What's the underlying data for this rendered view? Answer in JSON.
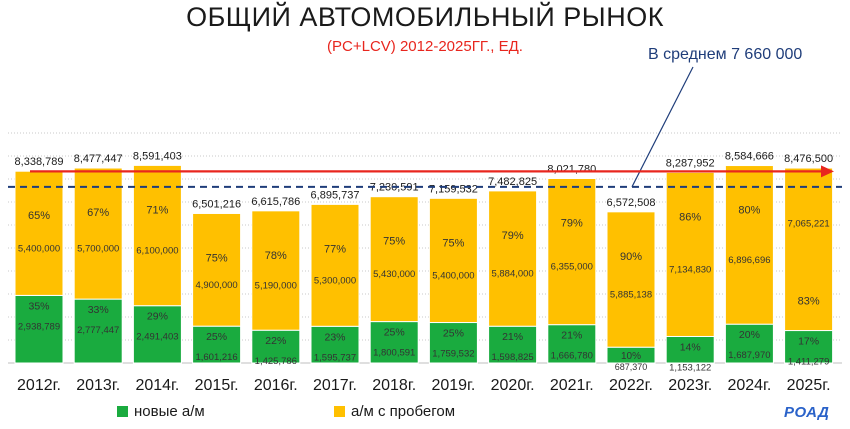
{
  "title": "ОБЩИЙ АВТОМОБИЛЬНЫЙ РЫНОК",
  "subtitle": "(PC+LCV) 2012-2025ГГ., ЕД.",
  "avg_label": "В среднем 7 660 000",
  "logo": "РОАД",
  "colors": {
    "new": "#1aab3f",
    "used": "#ffc000",
    "title": "#1a1a1a",
    "subtitle": "#e8261e",
    "avg": "#1f3d7a",
    "trend": "#e8261e",
    "logo": "#2a62c9"
  },
  "chart_data": {
    "type": "bar",
    "stacked": true,
    "title": "ОБЩИЙ АВТОМОБИЛЬНЫЙ РЫНОК",
    "subtitle": "(PC+LCV) 2012-2025ГГ., ЕД.",
    "categories": [
      "2012г.",
      "2013г.",
      "2014г.",
      "2015г.",
      "2016г.",
      "2017г.",
      "2018г.",
      "2019г.",
      "2020г.",
      "2021г.",
      "2022г.",
      "2023г.",
      "2024г.",
      "2025г."
    ],
    "totals": [
      "8,338,789",
      "8,477,447",
      "8,591,403",
      "6,501,216",
      "6,615,786",
      "6,895,737",
      "7,230,591",
      "7,159,532",
      "7,482,825",
      "8,021,780",
      "6,572,508",
      "8,287,952",
      "8,584,666",
      "8,476,500"
    ],
    "series": [
      {
        "name": "новые а/м",
        "values": [
          2938789,
          2777447,
          2491403,
          1601216,
          1425786,
          1595737,
          1800591,
          1759532,
          1598825,
          1666780,
          687370,
          1153122,
          1687970,
          1411279
        ],
        "labels": [
          "2,938,789",
          "2,777,447",
          "2,491,403",
          "1,601,216",
          "1,425,786",
          "1,595,737",
          "1,800,591",
          "1,759,532",
          "1,598,825",
          "1,666,780",
          "687,370",
          "1,153,122",
          "1,687,970",
          "1,411,279"
        ],
        "pct": [
          "35%",
          "33%",
          "29%",
          "25%",
          "22%",
          "23%",
          "25%",
          "25%",
          "21%",
          "21%",
          "10%",
          "14%",
          "20%",
          "17%"
        ]
      },
      {
        "name": "а/м с пробегом",
        "values": [
          5400000,
          5700000,
          6100000,
          4900000,
          5190000,
          5300000,
          5430000,
          5400000,
          5884000,
          6355000,
          5885138,
          7134830,
          6896696,
          7065221
        ],
        "labels": [
          "5,400,000",
          "5,700,000",
          "6,100,000",
          "4,900,000",
          "5,190,000",
          "5,300,000",
          "5,430,000",
          "5,400,000",
          "5,884,000",
          "6,355,000",
          "5,885,138",
          "7,134,830",
          "6,896,696",
          "7,065,221"
        ],
        "pct": [
          "65%",
          "67%",
          "71%",
          "75%",
          "78%",
          "77%",
          "75%",
          "75%",
          "79%",
          "79%",
          "90%",
          "86%",
          "80%",
          "83%"
        ]
      }
    ],
    "average": 7660000,
    "ylim": [
      0,
      10000000
    ],
    "legend": [
      "новые а/м",
      "а/м с пробегом"
    ],
    "legend_position": "bottom"
  }
}
